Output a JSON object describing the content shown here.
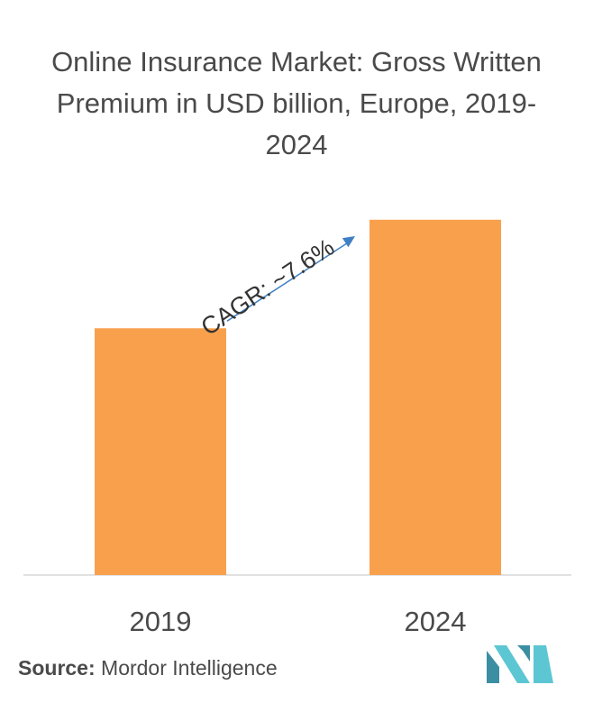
{
  "title": "Online Insurance Market: Gross Written Premium in USD billion, Europe, 2019-2024",
  "chart_data": {
    "type": "bar",
    "categories": [
      "2019",
      "2024"
    ],
    "values": [
      1.0,
      1.44
    ],
    "ylim": [
      0,
      1.6
    ],
    "grid": false,
    "bar_color": "#f9a04d",
    "annotation": "CAGR: ~7.6%"
  },
  "source": {
    "label": "Source:",
    "text": "Mordor Intelligence"
  },
  "logo_colors": [
    "#3c8ea3",
    "#5cc6d3"
  ]
}
